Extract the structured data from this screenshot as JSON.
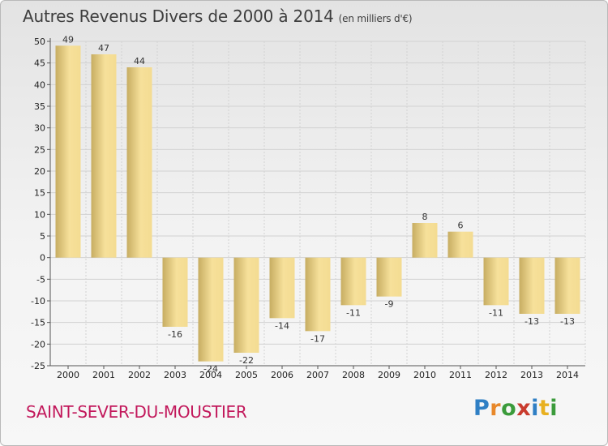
{
  "header": {
    "title": "Autres Revenus Divers de 2000 à 2014",
    "unit": "(en milliers d'€)"
  },
  "footer": {
    "commune": "SAINT-SEVER-DU-MOUSTIER",
    "logo": "Proxiti",
    "logo_letters": [
      "P",
      "r",
      "o",
      "x",
      "i",
      "t",
      "i"
    ],
    "logo_colors": [
      "#2f7fc4",
      "#e8882a",
      "#3b9b3b",
      "#c93b2e",
      "#2f7fc4",
      "#e8b020",
      "#3b9b3b"
    ]
  },
  "chart_data": {
    "type": "bar",
    "title": "Autres Revenus Divers de 2000 à 2014",
    "subtitle": "(en milliers d'€)",
    "xlabel": "",
    "ylabel": "",
    "categories": [
      "2000",
      "2001",
      "2002",
      "2003",
      "2004",
      "2005",
      "2006",
      "2007",
      "2008",
      "2009",
      "2010",
      "2011",
      "2012",
      "2013",
      "2014"
    ],
    "values": [
      49,
      47,
      44,
      -16,
      -24,
      -22,
      -14,
      -17,
      -11,
      -9,
      8,
      6,
      -11,
      -13,
      -13
    ],
    "value_labels": [
      "49",
      "47",
      "44",
      "-16",
      "-24",
      "-22",
      "-14",
      "-17",
      "-11",
      "-9",
      "8",
      "6",
      "-11",
      "-13",
      "-13"
    ],
    "ylim": [
      -25,
      50
    ],
    "yticks": [
      -25,
      -20,
      -15,
      -10,
      -5,
      0,
      5,
      10,
      15,
      20,
      25,
      30,
      35,
      40,
      45,
      50
    ],
    "ytick_labels": [
      "-25",
      "-20",
      "-15",
      "-10",
      "-5",
      "0",
      "5",
      "10",
      "15",
      "20",
      "25",
      "30",
      "35",
      "40",
      "45",
      "50"
    ],
    "grid": true,
    "colors": {
      "bar_light": "#f6e09a",
      "bar_dark": "#c7ad62",
      "grid": "#d2d2d2",
      "axis": "#555555"
    }
  }
}
